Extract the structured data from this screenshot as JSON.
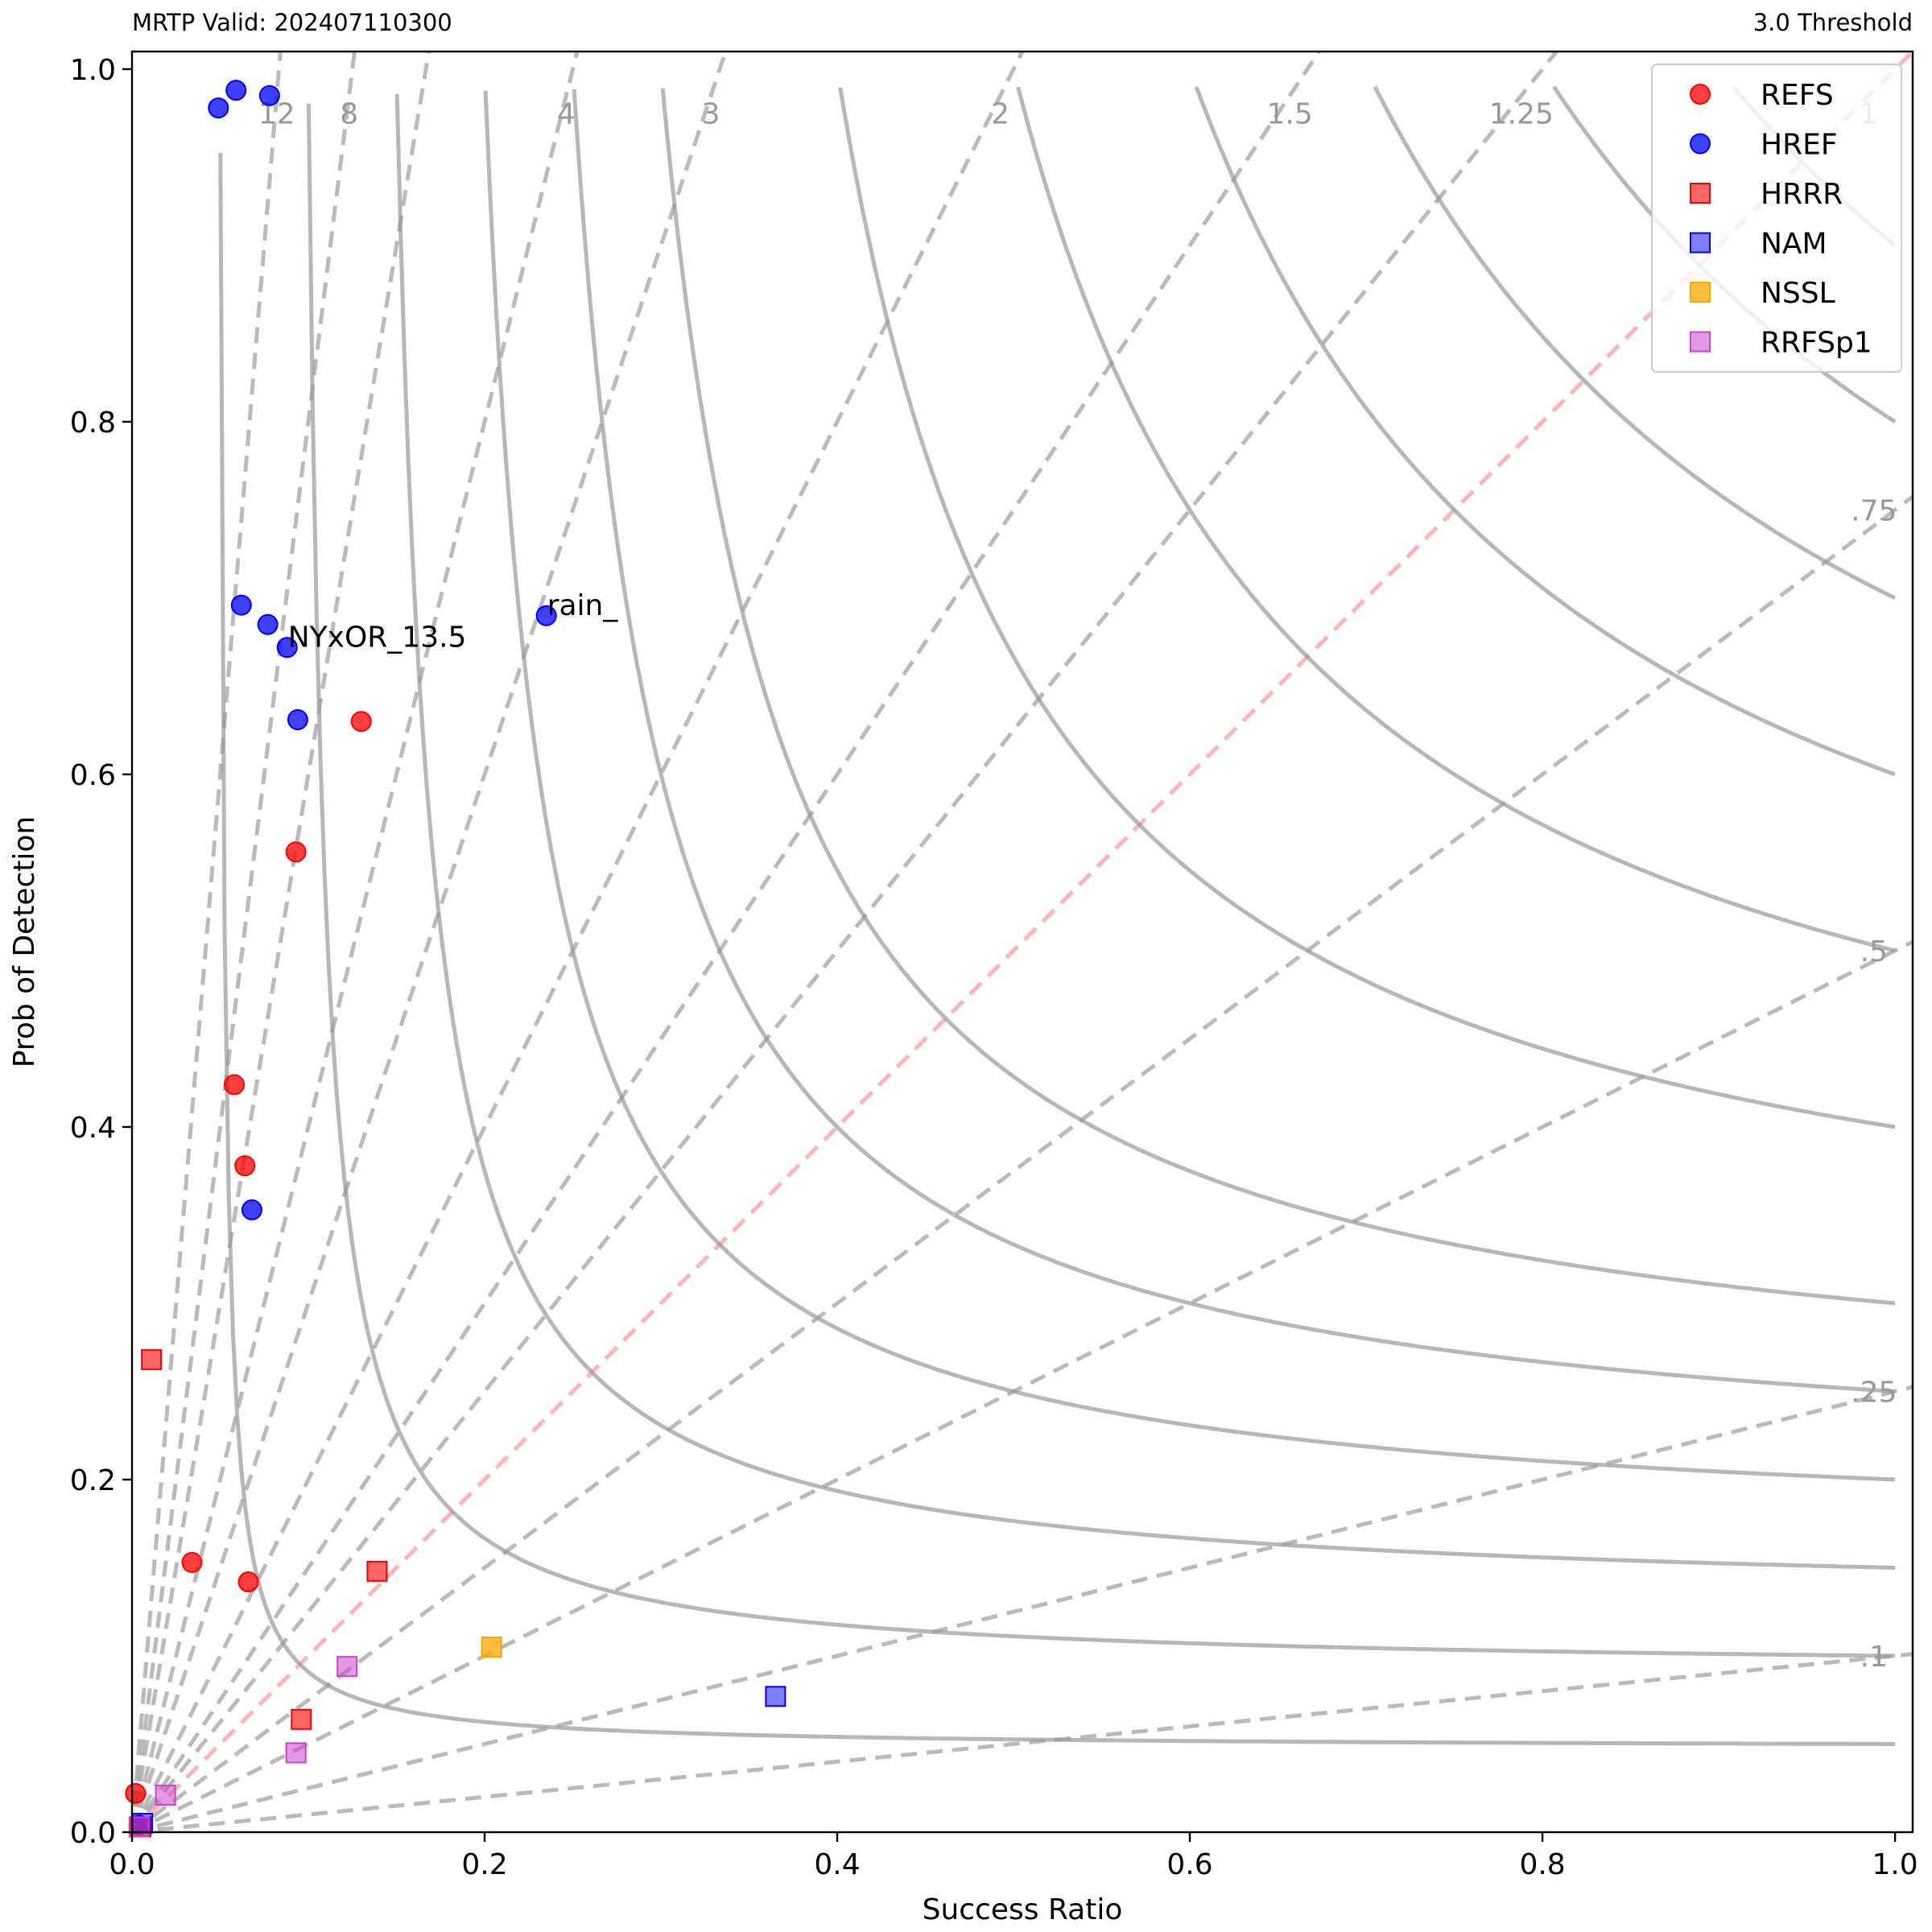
{
  "header": {
    "left": "MRTP Valid: 202407110300",
    "right": "3.0 Threshold"
  },
  "chart_data": {
    "type": "scatter",
    "subtype": "performance-diagram",
    "xlabel": "Success Ratio",
    "ylabel": "Prob of Detection",
    "xlim": [
      0,
      1.01
    ],
    "ylim": [
      0,
      1.01
    ],
    "xticks": [
      "0.0",
      "0.2",
      "0.4",
      "0.6",
      "0.8",
      "1.0"
    ],
    "yticks": [
      "0.0",
      "0.2",
      "0.4",
      "0.6",
      "0.8",
      "1.0"
    ],
    "bias_lines": [
      {
        "value": 12,
        "label": "12"
      },
      {
        "value": 8,
        "label": "8"
      },
      {
        "value": 6,
        "label": ""
      },
      {
        "value": 4,
        "label": "4"
      },
      {
        "value": 3,
        "label": "3"
      },
      {
        "value": 2,
        "label": "2"
      },
      {
        "value": 1.5,
        "label": "1.5"
      },
      {
        "value": 1.25,
        "label": "1.25"
      },
      {
        "value": 1,
        "label": "1"
      },
      {
        "value": 0.75,
        "label": ".75"
      },
      {
        "value": 0.5,
        "label": ".5"
      },
      {
        "value": 0.25,
        "label": ".25"
      },
      {
        "value": 0.1,
        "label": ".1"
      }
    ],
    "csi_lines": [
      0.05,
      0.1,
      0.15,
      0.2,
      0.25,
      0.3,
      0.4,
      0.5,
      0.6,
      0.7,
      0.8,
      0.9
    ],
    "legend_position": "top-right",
    "series": [
      {
        "name": "REFS",
        "marker": "circle",
        "color": "#ff0000",
        "opacity": 0.75,
        "points": [
          [
            0.13,
            0.63
          ],
          [
            0.093,
            0.556
          ],
          [
            0.058,
            0.424
          ],
          [
            0.064,
            0.378
          ],
          [
            0.034,
            0.153
          ],
          [
            0.066,
            0.142
          ],
          [
            0.002,
            0.022
          ]
        ]
      },
      {
        "name": "HREF",
        "marker": "circle",
        "color": "#0000ff",
        "opacity": 0.75,
        "points": [
          [
            0.049,
            0.978
          ],
          [
            0.059,
            0.988
          ],
          [
            0.078,
            0.985
          ],
          [
            0.062,
            0.696
          ],
          [
            0.077,
            0.685
          ],
          [
            0.088,
            0.672
          ],
          [
            0.094,
            0.631
          ],
          [
            0.235,
            0.69
          ],
          [
            0.068,
            0.353
          ],
          [
            0.004,
            0.004
          ]
        ]
      },
      {
        "name": "HRRR",
        "marker": "square",
        "color": "#ff0000",
        "opacity": 0.6,
        "points": [
          [
            0.011,
            0.268
          ],
          [
            0.139,
            0.148
          ],
          [
            0.096,
            0.064
          ],
          [
            0.005,
            0.003
          ]
        ]
      },
      {
        "name": "NAM",
        "marker": "square",
        "color": "#0000ff",
        "opacity": 0.5,
        "points": [
          [
            0.365,
            0.077
          ],
          [
            0.006,
            0.005
          ]
        ]
      },
      {
        "name": "NSSL",
        "marker": "square",
        "color": "#ffa500",
        "opacity": 0.75,
        "points": [
          [
            0.204,
            0.105
          ]
        ]
      },
      {
        "name": "RRFSp1",
        "marker": "square",
        "color": "#cc44cc",
        "opacity": 0.55,
        "points": [
          [
            0.122,
            0.094
          ],
          [
            0.093,
            0.045
          ],
          [
            0.019,
            0.021
          ],
          [
            0.004,
            0.003
          ]
        ]
      }
    ],
    "annotations": [
      {
        "text": "NYxOR_13.5",
        "x": 0.088,
        "y": 0.672
      },
      {
        "text": "rain_",
        "x": 0.235,
        "y": 0.69
      }
    ]
  }
}
